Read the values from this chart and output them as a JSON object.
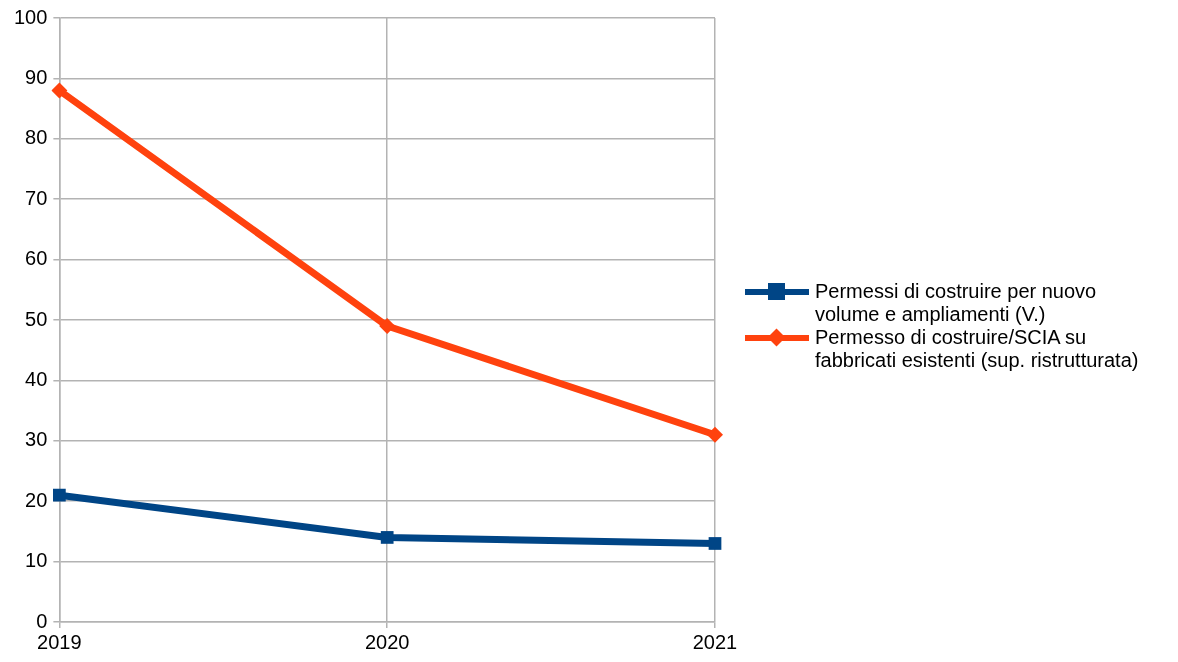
{
  "chart_data": {
    "type": "line",
    "categories": [
      "2019",
      "2020",
      "2021"
    ],
    "series": [
      {
        "name": "Permessi di costruire per nuovo volume e ampliamenti (V.)",
        "color": "#004586",
        "marker": "square",
        "values": [
          21,
          14,
          13
        ]
      },
      {
        "name": "Permesso di costruire/SCIA su fabbricati esistenti (sup. ristrutturata)",
        "color": "#ff420e",
        "marker": "diamond",
        "values": [
          88,
          49,
          31
        ]
      }
    ],
    "ylim": [
      0,
      100
    ],
    "yticks": [
      0,
      10,
      20,
      30,
      40,
      50,
      60,
      70,
      80,
      90,
      100
    ],
    "grid": true,
    "legend": "right"
  }
}
